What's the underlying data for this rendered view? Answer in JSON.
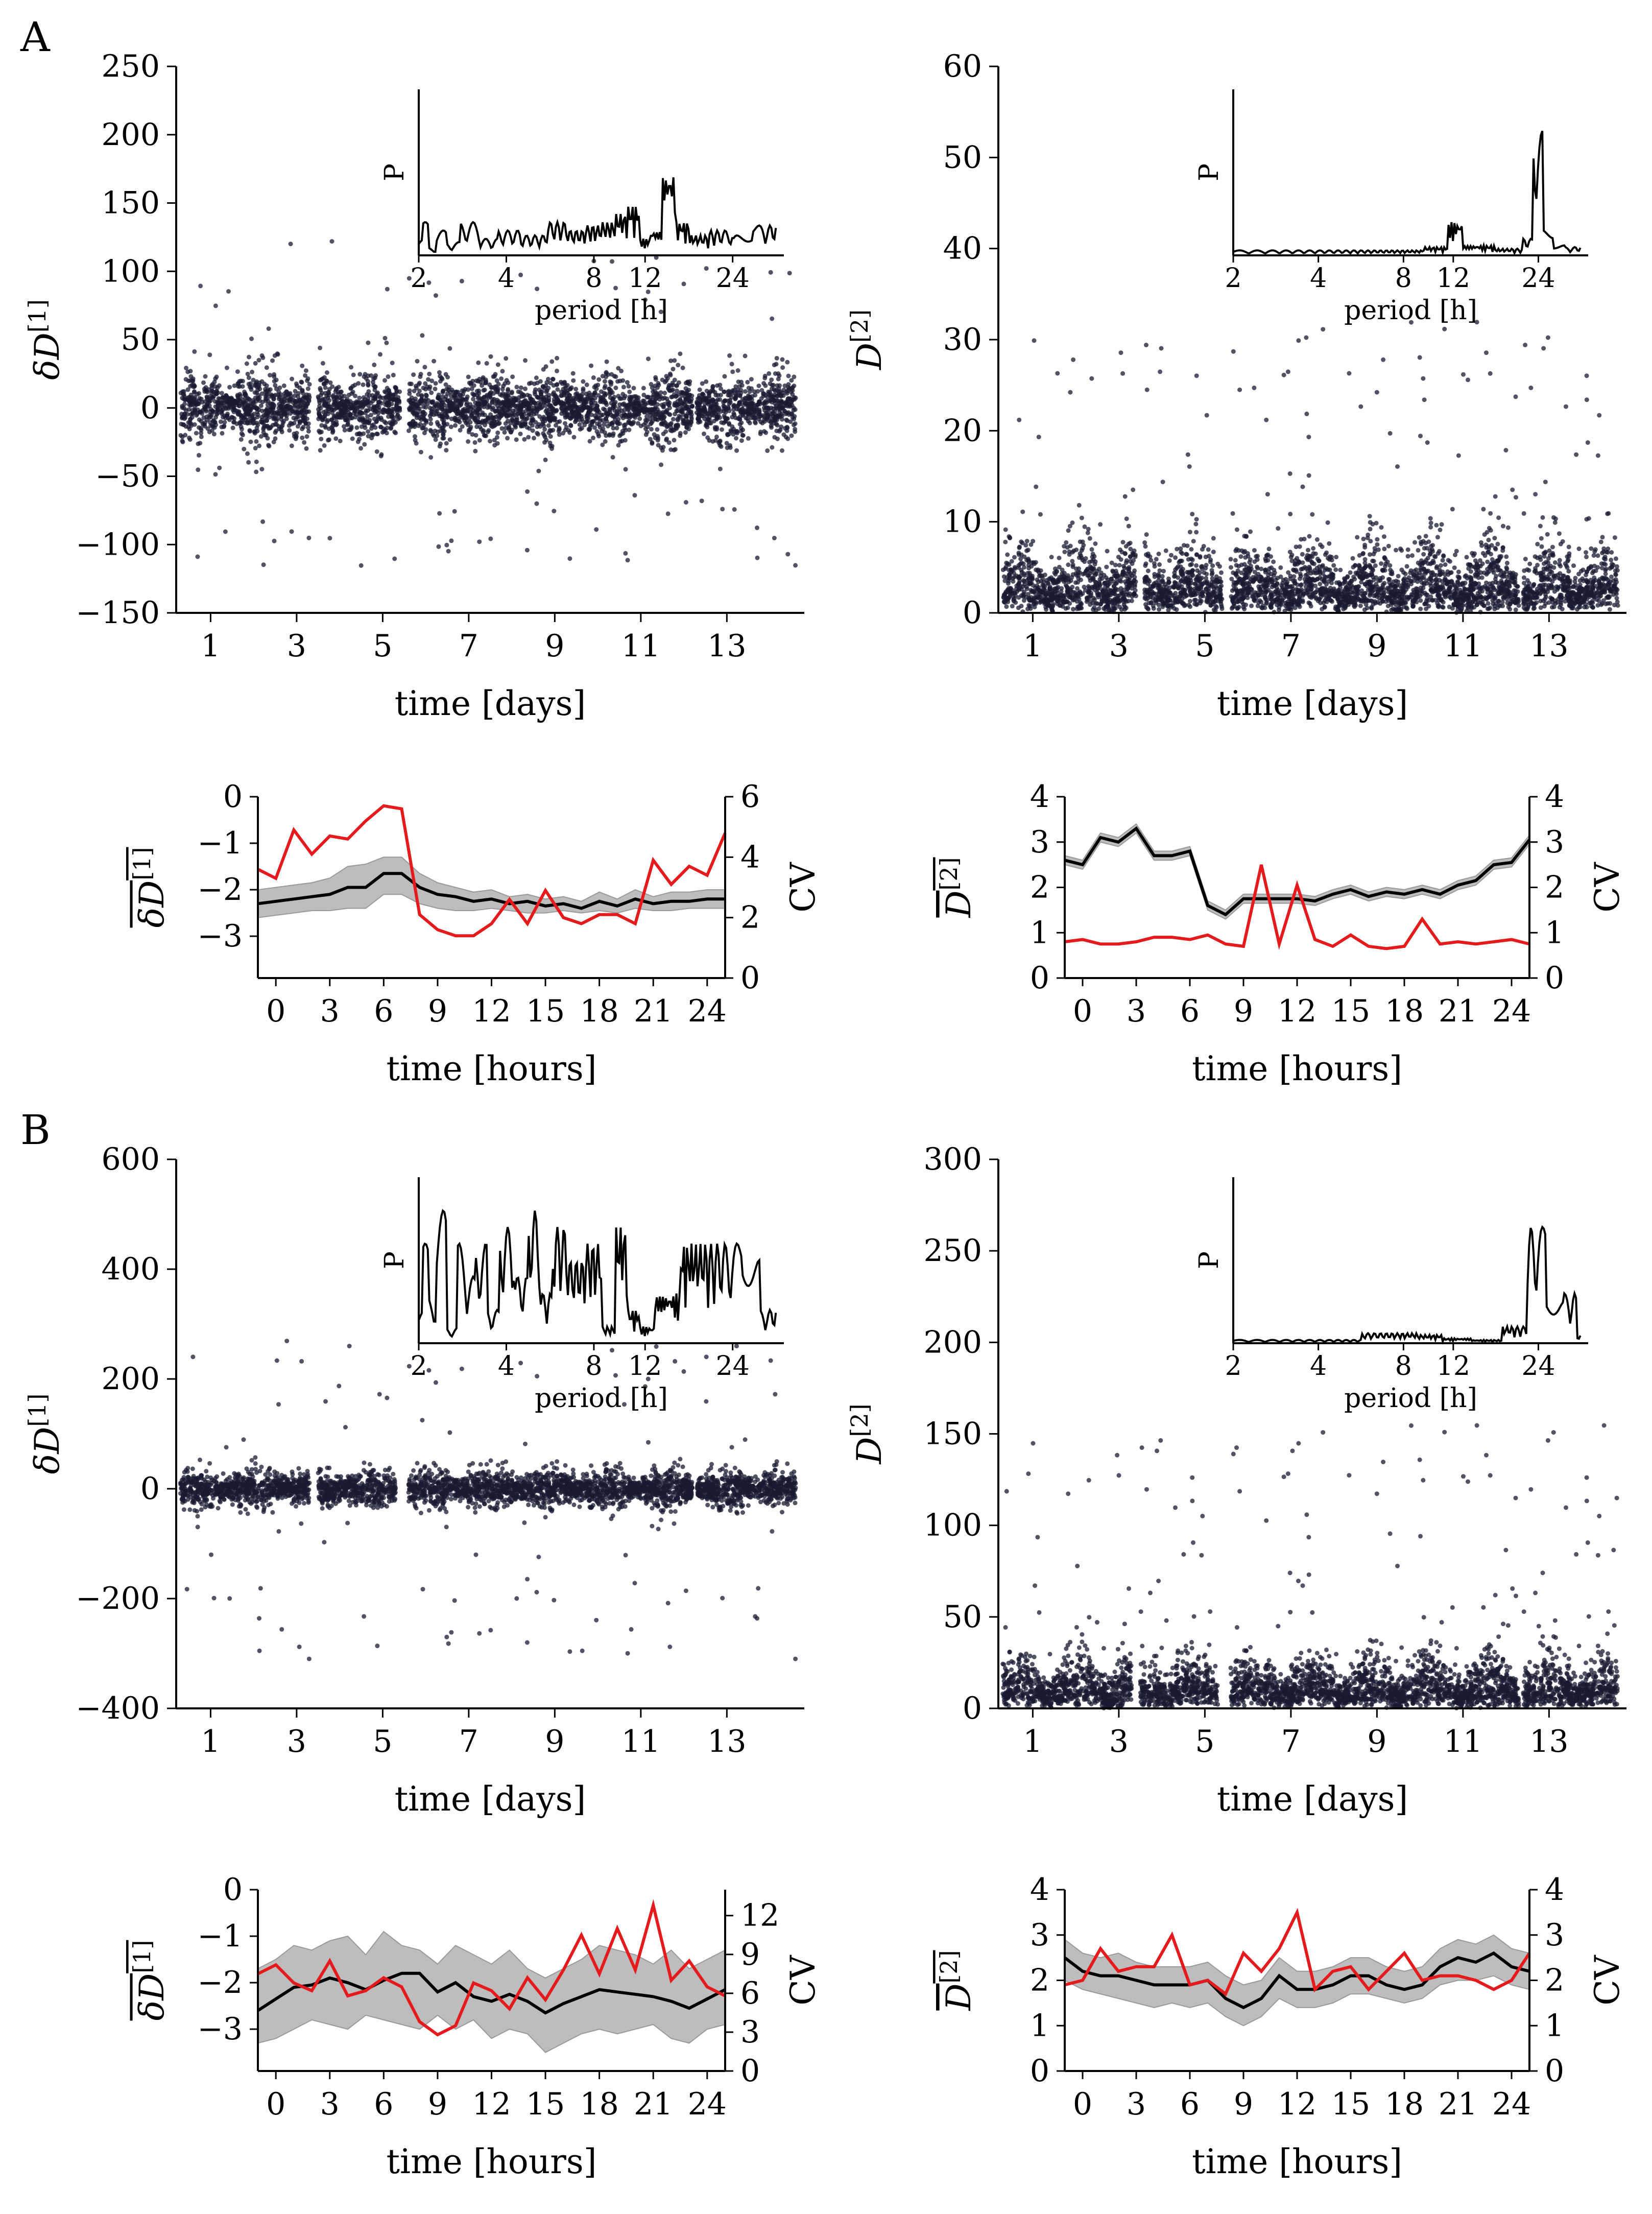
{
  "panel_labels": [
    "A",
    "B"
  ],
  "colors": {
    "black": "#000000",
    "red": "#e41a1c",
    "band": "#bdbdbd",
    "scatter": "#1a1a33"
  },
  "chart_data": [
    {
      "id": "A-dD1-days",
      "type": "scatter",
      "xlabel": "time [days]",
      "ylabel": "δD[1]",
      "xlim": [
        0.2,
        14.8
      ],
      "ylim": [
        -150,
        250
      ],
      "xticks": [
        1,
        3,
        5,
        7,
        9,
        11,
        13
      ],
      "yticks": [
        -150,
        -100,
        -50,
        0,
        50,
        100,
        150,
        200,
        250
      ],
      "ytick_labels": [
        "−150",
        "−100",
        "−50",
        "0",
        "50",
        "100",
        "150",
        "200",
        "250"
      ],
      "segments": [
        [
          0.3,
          3.3
        ],
        [
          3.5,
          5.4
        ],
        [
          5.6,
          12.2
        ],
        [
          12.3,
          14.6
        ]
      ],
      "spread": 22,
      "outlier_max": 153,
      "outlier_min": -145,
      "inset": {
        "xlabel": "period [h]",
        "ylabel": "P",
        "xticks": [
          2,
          4,
          8,
          12,
          24
        ],
        "series": [
          [
            2,
            0.1
          ],
          [
            2.1,
            0.2
          ],
          [
            2.2,
            0.05
          ],
          [
            2.4,
            0.15
          ],
          [
            2.6,
            0.08
          ],
          [
            3,
            0.2
          ],
          [
            3.5,
            0.1
          ],
          [
            4,
            0.15
          ],
          [
            5,
            0.12
          ],
          [
            6,
            0.2
          ],
          [
            7,
            0.15
          ],
          [
            8,
            0.18
          ],
          [
            9,
            0.2
          ],
          [
            10,
            0.25
          ],
          [
            11,
            0.3
          ],
          [
            12,
            0.1
          ],
          [
            13,
            0.15
          ],
          [
            14.5,
            0.5
          ],
          [
            16,
            0.2
          ],
          [
            18,
            0.12
          ],
          [
            22,
            0.15
          ],
          [
            26,
            0.12
          ],
          [
            30,
            0.18
          ]
        ]
      }
    },
    {
      "id": "A-D2-days",
      "type": "scatter",
      "xlabel": "time [days]",
      "ylabel": "D[2]",
      "xlim": [
        0.2,
        14.8
      ],
      "ylim": [
        0,
        60
      ],
      "xticks": [
        1,
        3,
        5,
        7,
        9,
        11,
        13
      ],
      "yticks": [
        0,
        10,
        20,
        30,
        40,
        50,
        60
      ],
      "ytick_labels": [
        "0",
        "10",
        "20",
        "30",
        "40",
        "50",
        "60"
      ],
      "segments": [
        [
          0.3,
          3.4
        ],
        [
          3.6,
          5.4
        ],
        [
          5.6,
          12.3
        ],
        [
          12.4,
          14.6
        ]
      ],
      "spread": 4,
      "outlier_max": 32,
      "outlier_min": 0,
      "inset": {
        "xlabel": "period [h]",
        "ylabel": "P",
        "xticks": [
          2,
          4,
          8,
          12,
          24
        ],
        "series": [
          [
            2,
            0.03
          ],
          [
            4,
            0.03
          ],
          [
            8,
            0.03
          ],
          [
            11,
            0.05
          ],
          [
            12,
            0.2
          ],
          [
            14,
            0.06
          ],
          [
            20,
            0.04
          ],
          [
            22,
            0.1
          ],
          [
            24,
            0.75
          ],
          [
            26,
            0.15
          ],
          [
            28,
            0.06
          ],
          [
            32,
            0.05
          ]
        ]
      }
    },
    {
      "id": "A-dD1-hours",
      "type": "line",
      "xlabel": "time [hours]",
      "ylabel": "δD[1]",
      "y2label": "CV",
      "xlim": [
        -1,
        25
      ],
      "ylim": [
        -3.9,
        0
      ],
      "y2lim": [
        0,
        6
      ],
      "xticks": [
        0,
        3,
        6,
        9,
        12,
        15,
        18,
        21,
        24
      ],
      "yticks": [
        -3,
        -2,
        -1,
        0
      ],
      "ytick_labels": [
        "−3",
        "−2",
        "−1",
        "0"
      ],
      "y2ticks": [
        0,
        2,
        4,
        6
      ],
      "y2tick_labels": [
        "0",
        "2",
        "4",
        "6"
      ],
      "x": [
        -1,
        0,
        1,
        2,
        3,
        4,
        5,
        6,
        7,
        8,
        9,
        10,
        11,
        12,
        13,
        14,
        15,
        16,
        17,
        18,
        19,
        20,
        21,
        22,
        23,
        24,
        25
      ],
      "mean": [
        -2.3,
        -2.25,
        -2.2,
        -2.15,
        -2.1,
        -1.95,
        -1.95,
        -1.65,
        -1.65,
        -1.95,
        -2.1,
        -2.15,
        -2.25,
        -2.2,
        -2.3,
        -2.25,
        -2.35,
        -2.3,
        -2.4,
        -2.25,
        -2.35,
        -2.2,
        -2.3,
        -2.25,
        -2.25,
        -2.2,
        -2.2
      ],
      "band_lo": [
        -2.6,
        -2.55,
        -2.5,
        -2.45,
        -2.45,
        -2.4,
        -2.4,
        -2.1,
        -2.1,
        -2.3,
        -2.4,
        -2.45,
        -2.45,
        -2.4,
        -2.45,
        -2.5,
        -2.5,
        -2.45,
        -2.5,
        -2.45,
        -2.5,
        -2.4,
        -2.45,
        -2.45,
        -2.4,
        -2.4,
        -2.4
      ],
      "band_hi": [
        -2.0,
        -1.95,
        -1.9,
        -1.85,
        -1.75,
        -1.5,
        -1.45,
        -1.3,
        -1.3,
        -1.65,
        -1.85,
        -1.95,
        -2.05,
        -2.0,
        -2.15,
        -2.1,
        -2.2,
        -2.15,
        -2.25,
        -2.05,
        -2.2,
        -2.0,
        -2.15,
        -2.05,
        -2.05,
        -2.0,
        -2.0
      ],
      "cv": [
        3.6,
        3.3,
        4.9,
        4.1,
        4.7,
        4.6,
        5.2,
        5.7,
        5.6,
        2.1,
        1.6,
        1.4,
        1.4,
        1.8,
        2.6,
        1.8,
        2.9,
        2.0,
        1.8,
        2.1,
        2.1,
        1.8,
        3.9,
        3.1,
        3.7,
        3.4,
        4.8
      ]
    },
    {
      "id": "A-D2-hours",
      "type": "line",
      "xlabel": "time [hours]",
      "ylabel": "D[2]",
      "y2label": "CV",
      "xlim": [
        -1,
        25
      ],
      "ylim": [
        0,
        4
      ],
      "y2lim": [
        0,
        4
      ],
      "xticks": [
        0,
        3,
        6,
        9,
        12,
        15,
        18,
        21,
        24
      ],
      "yticks": [
        0,
        1,
        2,
        3,
        4
      ],
      "ytick_labels": [
        "0",
        "1",
        "2",
        "3",
        "4"
      ],
      "y2ticks": [
        0,
        1,
        2,
        3,
        4
      ],
      "y2tick_labels": [
        "0",
        "1",
        "2",
        "3",
        "4"
      ],
      "x": [
        -1,
        0,
        1,
        2,
        3,
        4,
        5,
        6,
        7,
        8,
        9,
        10,
        11,
        12,
        13,
        14,
        15,
        16,
        17,
        18,
        19,
        20,
        21,
        22,
        23,
        24,
        25
      ],
      "mean": [
        2.6,
        2.5,
        3.1,
        3.0,
        3.3,
        2.7,
        2.7,
        2.8,
        1.6,
        1.4,
        1.75,
        1.75,
        1.75,
        1.75,
        1.7,
        1.85,
        1.95,
        1.8,
        1.9,
        1.85,
        1.95,
        1.85,
        2.05,
        2.15,
        2.5,
        2.55,
        3.05
      ],
      "band_lo": [
        2.5,
        2.4,
        3.0,
        2.9,
        3.2,
        2.6,
        2.6,
        2.7,
        1.5,
        1.3,
        1.65,
        1.65,
        1.65,
        1.65,
        1.6,
        1.75,
        1.85,
        1.7,
        1.8,
        1.75,
        1.85,
        1.75,
        1.95,
        2.05,
        2.4,
        2.45,
        2.95
      ],
      "band_hi": [
        2.7,
        2.6,
        3.2,
        3.1,
        3.4,
        2.8,
        2.8,
        2.9,
        1.7,
        1.5,
        1.85,
        1.85,
        1.85,
        1.85,
        1.8,
        1.95,
        2.05,
        1.9,
        2.0,
        1.95,
        2.05,
        1.95,
        2.15,
        2.25,
        2.6,
        2.65,
        3.15
      ],
      "cv": [
        0.8,
        0.85,
        0.75,
        0.75,
        0.8,
        0.9,
        0.9,
        0.85,
        0.95,
        0.75,
        0.7,
        2.5,
        0.75,
        2.05,
        0.85,
        0.7,
        0.95,
        0.7,
        0.65,
        0.7,
        1.3,
        0.75,
        0.8,
        0.75,
        0.8,
        0.85,
        0.75
      ]
    },
    {
      "id": "B-dD1-days",
      "type": "scatter",
      "xlabel": "time [days]",
      "ylabel": "δD[1]",
      "xlim": [
        0.2,
        14.8
      ],
      "ylim": [
        -400,
        600
      ],
      "xticks": [
        1,
        3,
        5,
        7,
        9,
        11,
        13
      ],
      "yticks": [
        -400,
        -200,
        0,
        200,
        400,
        600
      ],
      "ytick_labels": [
        "−400",
        "−200",
        "0",
        "200",
        "400",
        "600"
      ],
      "segments": [
        [
          0.3,
          3.3
        ],
        [
          3.5,
          5.3
        ],
        [
          5.6,
          12.2
        ],
        [
          12.3,
          14.6
        ]
      ],
      "spread": 30,
      "outlier_max": 360,
      "outlier_min": -390,
      "inset": {
        "xlabel": "period [h]",
        "ylabel": "P",
        "xticks": [
          2,
          4,
          8,
          12,
          24
        ],
        "series": [
          [
            2,
            0.2
          ],
          [
            2.1,
            0.6
          ],
          [
            2.2,
            0.3
          ],
          [
            2.4,
            0.8
          ],
          [
            2.6,
            0.1
          ],
          [
            2.8,
            0.6
          ],
          [
            3,
            0.4
          ],
          [
            3.3,
            0.6
          ],
          [
            3.6,
            0.2
          ],
          [
            4,
            0.7
          ],
          [
            4.5,
            0.4
          ],
          [
            5,
            0.8
          ],
          [
            5.5,
            0.3
          ],
          [
            6,
            0.7
          ],
          [
            7,
            0.5
          ],
          [
            8,
            0.6
          ],
          [
            9,
            0.1
          ],
          [
            10,
            0.7
          ],
          [
            11,
            0.2
          ],
          [
            12,
            0.1
          ],
          [
            14,
            0.3
          ],
          [
            18,
            0.6
          ],
          [
            24,
            0.6
          ],
          [
            28,
            0.5
          ],
          [
            32,
            0.2
          ]
        ]
      }
    },
    {
      "id": "B-D2-days",
      "type": "scatter",
      "xlabel": "time [days]",
      "ylabel": "D[2]",
      "xlim": [
        0.2,
        14.8
      ],
      "ylim": [
        0,
        300
      ],
      "xticks": [
        1,
        3,
        5,
        7,
        9,
        11,
        13
      ],
      "yticks": [
        0,
        50,
        100,
        150,
        200,
        250,
        300
      ],
      "ytick_labels": [
        "0",
        "50",
        "100",
        "150",
        "200",
        "250",
        "300"
      ],
      "segments": [
        [
          0.3,
          3.3
        ],
        [
          3.5,
          5.3
        ],
        [
          5.6,
          12.3
        ],
        [
          12.4,
          14.6
        ]
      ],
      "spread": 15,
      "outlier_max": 155,
      "outlier_min": 0,
      "inset": {
        "xlabel": "period [h]",
        "ylabel": "P",
        "xticks": [
          2,
          4,
          8,
          12,
          24
        ],
        "series": [
          [
            2,
            0.02
          ],
          [
            4,
            0.02
          ],
          [
            8,
            0.06
          ],
          [
            10,
            0.05
          ],
          [
            12,
            0.03
          ],
          [
            16,
            0.02
          ],
          [
            20,
            0.1
          ],
          [
            24,
            0.7
          ],
          [
            27,
            0.25
          ],
          [
            32,
            0.3
          ],
          [
            34,
            0.05
          ]
        ]
      }
    },
    {
      "id": "B-dD1-hours",
      "type": "line",
      "xlabel": "time [hours]",
      "ylabel": "δD[1]",
      "y2label": "CV",
      "xlim": [
        -1,
        25
      ],
      "ylim": [
        -3.9,
        0
      ],
      "y2lim": [
        0,
        14
      ],
      "xticks": [
        0,
        3,
        6,
        9,
        12,
        15,
        18,
        21,
        24
      ],
      "yticks": [
        -3,
        -2,
        -1,
        0
      ],
      "ytick_labels": [
        "−3",
        "−2",
        "−1",
        "0"
      ],
      "y2ticks": [
        0,
        3,
        6,
        9,
        12
      ],
      "y2tick_labels": [
        "0",
        "3",
        "6",
        "9",
        "12"
      ],
      "x": [
        -1,
        0,
        1,
        2,
        3,
        4,
        5,
        6,
        7,
        8,
        9,
        10,
        11,
        12,
        13,
        14,
        15,
        16,
        17,
        18,
        19,
        20,
        21,
        22,
        23,
        24,
        25
      ],
      "mean": [
        -2.6,
        -2.35,
        -2.1,
        -2.05,
        -1.9,
        -2.0,
        -2.15,
        -1.95,
        -1.8,
        -1.8,
        -2.2,
        -2.0,
        -2.3,
        -2.4,
        -2.25,
        -2.4,
        -2.65,
        -2.45,
        -2.3,
        -2.15,
        -2.2,
        -2.25,
        -2.3,
        -2.4,
        -2.55,
        -2.35,
        -2.15
      ],
      "band_lo": [
        -3.3,
        -3.2,
        -3.0,
        -2.8,
        -2.9,
        -3.0,
        -2.7,
        -2.8,
        -2.9,
        -3.0,
        -2.7,
        -3.0,
        -2.8,
        -3.2,
        -3.0,
        -3.1,
        -3.5,
        -3.3,
        -3.1,
        -3.0,
        -3.1,
        -3.0,
        -2.9,
        -3.2,
        -3.3,
        -3.0,
        -2.9
      ],
      "band_hi": [
        -1.7,
        -1.5,
        -1.2,
        -1.3,
        -1.1,
        -1.0,
        -1.4,
        -0.9,
        -1.2,
        -1.3,
        -1.6,
        -1.2,
        -1.4,
        -1.6,
        -1.3,
        -1.7,
        -1.9,
        -1.7,
        -1.5,
        -1.2,
        -1.3,
        -1.4,
        -1.6,
        -1.3,
        -1.7,
        -1.5,
        -1.3
      ],
      "cv": [
        7.5,
        8.2,
        6.8,
        6.2,
        8.5,
        5.8,
        6.2,
        7.2,
        6.5,
        3.8,
        2.8,
        3.5,
        6.8,
        6.2,
        4.8,
        7.2,
        5.5,
        7.8,
        10.5,
        7.5,
        11.0,
        7.8,
        12.8,
        7.0,
        8.5,
        6.5,
        5.8
      ]
    },
    {
      "id": "B-D2-hours",
      "type": "line",
      "xlabel": "time [hours]",
      "ylabel": "D[2]",
      "y2label": "CV",
      "xlim": [
        -1,
        25
      ],
      "ylim": [
        0,
        4
      ],
      "y2lim": [
        0,
        4
      ],
      "xticks": [
        0,
        3,
        6,
        9,
        12,
        15,
        18,
        21,
        24
      ],
      "yticks": [
        0,
        1,
        2,
        3,
        4
      ],
      "ytick_labels": [
        "0",
        "1",
        "2",
        "3",
        "4"
      ],
      "y2ticks": [
        0,
        1,
        2,
        3,
        4
      ],
      "y2tick_labels": [
        "0",
        "1",
        "2",
        "3",
        "4"
      ],
      "x": [
        -1,
        0,
        1,
        2,
        3,
        4,
        5,
        6,
        7,
        8,
        9,
        10,
        11,
        12,
        13,
        14,
        15,
        16,
        17,
        18,
        19,
        20,
        21,
        22,
        23,
        24,
        25
      ],
      "mean": [
        2.5,
        2.2,
        2.1,
        2.1,
        2.0,
        1.9,
        1.9,
        1.9,
        2.0,
        1.6,
        1.4,
        1.6,
        2.1,
        1.8,
        1.8,
        1.9,
        2.1,
        2.1,
        1.9,
        1.8,
        1.9,
        2.3,
        2.5,
        2.4,
        2.6,
        2.3,
        2.2
      ],
      "band_lo": [
        2.0,
        1.8,
        1.7,
        1.6,
        1.5,
        1.4,
        1.5,
        1.4,
        1.5,
        1.2,
        1.0,
        1.2,
        1.6,
        1.4,
        1.4,
        1.5,
        1.7,
        1.7,
        1.6,
        1.5,
        1.6,
        1.9,
        2.0,
        2.0,
        2.1,
        1.9,
        1.8
      ],
      "band_hi": [
        2.9,
        2.6,
        2.5,
        2.6,
        2.4,
        2.3,
        2.3,
        2.3,
        2.4,
        2.1,
        1.9,
        2.0,
        2.5,
        2.2,
        2.2,
        2.3,
        2.5,
        2.5,
        2.3,
        2.2,
        2.3,
        2.7,
        2.9,
        2.8,
        3.0,
        2.7,
        2.6
      ],
      "cv": [
        1.9,
        2.0,
        2.7,
        2.2,
        2.3,
        2.3,
        3.0,
        1.9,
        2.0,
        1.7,
        2.6,
        2.2,
        2.7,
        3.5,
        1.8,
        2.2,
        2.3,
        1.8,
        2.2,
        2.6,
        2.0,
        2.1,
        2.1,
        2.0,
        1.8,
        2.0,
        2.6
      ]
    }
  ]
}
